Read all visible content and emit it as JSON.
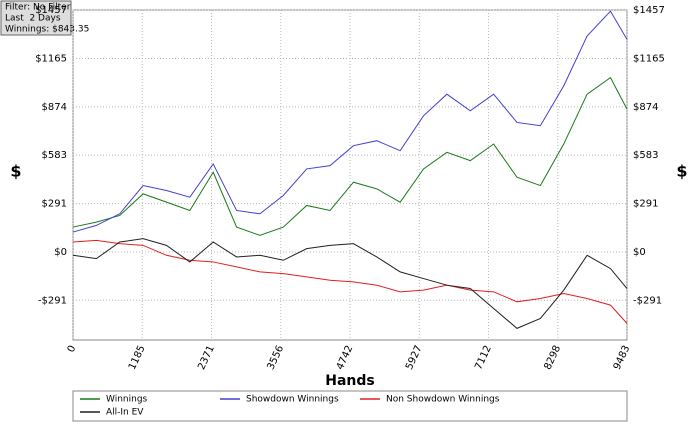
{
  "chart_data": {
    "type": "line",
    "annotations": [
      "Filter: No Filter",
      "Last  2 Days",
      "Winnings: $843.35"
    ],
    "x_label": "Hands",
    "y_label": "$",
    "xlim": [
      0,
      9483
    ],
    "xticks": [
      0,
      1185,
      2371,
      3556,
      4742,
      5927,
      7112,
      8298,
      9483
    ],
    "ylim": [
      -530,
      1457
    ],
    "yticks": [
      {
        "value": -291,
        "label": "-$291"
      },
      {
        "value": 0,
        "label": "$0"
      },
      {
        "value": 291,
        "label": "$291"
      },
      {
        "value": 583,
        "label": "$583"
      },
      {
        "value": 874,
        "label": "$874"
      },
      {
        "value": 1165,
        "label": "$1165"
      },
      {
        "value": 1457,
        "label": "$1457"
      }
    ],
    "grid": true,
    "x": [
      0,
      400,
      800,
      1200,
      1600,
      2000,
      2400,
      2800,
      3200,
      3600,
      4000,
      4400,
      4800,
      5200,
      5600,
      6000,
      6400,
      6800,
      7200,
      7600,
      8000,
      8400,
      8800,
      9200,
      9483
    ],
    "series": [
      {
        "name": "Winnings",
        "color": "#1a7a1a",
        "values": [
          150,
          180,
          220,
          350,
          300,
          250,
          480,
          150,
          100,
          150,
          280,
          250,
          420,
          380,
          300,
          500,
          600,
          550,
          650,
          450,
          400,
          650,
          950,
          1050,
          860
        ]
      },
      {
        "name": "Showdown Winnings",
        "color": "#4040d0",
        "values": [
          120,
          160,
          230,
          400,
          370,
          330,
          530,
          250,
          230,
          340,
          500,
          520,
          640,
          670,
          610,
          820,
          950,
          850,
          950,
          780,
          760,
          1000,
          1300,
          1450,
          1280
        ]
      },
      {
        "name": "Non Showdown Winnings",
        "color": "#e02020",
        "values": [
          60,
          70,
          50,
          40,
          -20,
          -50,
          -60,
          -90,
          -120,
          -130,
          -150,
          -170,
          -180,
          -200,
          -240,
          -230,
          -200,
          -230,
          -240,
          -300,
          -280,
          -250,
          -280,
          -320,
          -430
        ]
      },
      {
        "name": "All-In EV",
        "color": "#202020",
        "values": [
          -20,
          -40,
          60,
          80,
          40,
          -60,
          60,
          -30,
          -20,
          -50,
          20,
          40,
          50,
          -30,
          -120,
          -160,
          -200,
          -220,
          -340,
          -460,
          -400,
          -230,
          -20,
          -100,
          -220
        ]
      }
    ]
  }
}
